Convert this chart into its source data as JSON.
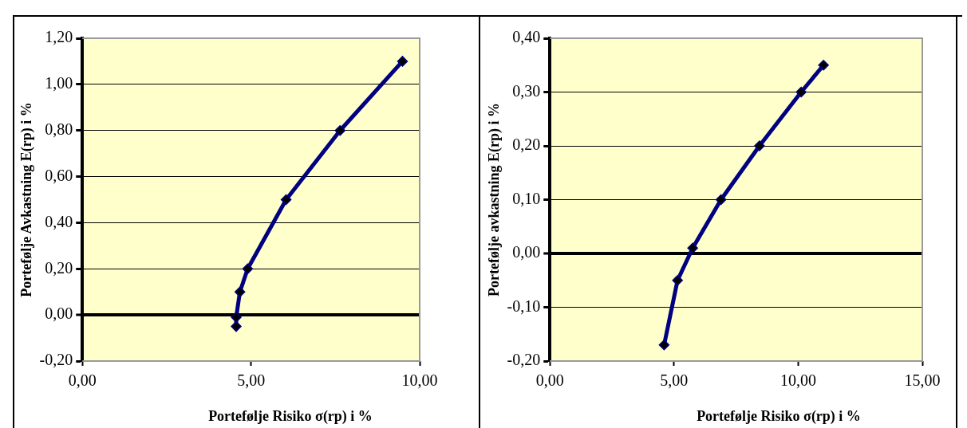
{
  "chart_data": [
    {
      "type": "line",
      "xlabel": "Portefølje Risiko σ(rp) i %",
      "ylabel": "Portefølje Avkastning E(rp) i %",
      "color": "#000080",
      "marker": "diamond",
      "grid": "y",
      "x": [
        9.49,
        7.64,
        6.04,
        4.9,
        4.67,
        4.56,
        4.56
      ],
      "values": [
        1.1,
        0.8,
        0.5,
        0.2,
        0.1,
        -0.01,
        -0.05
      ],
      "xlim": [
        0,
        10
      ],
      "xticks": [
        {
          "value": 0,
          "label": "0,00"
        },
        {
          "value": 5,
          "label": "5,00"
        },
        {
          "value": 10,
          "label": "10,00"
        }
      ],
      "ylim": [
        -0.2,
        1.2
      ],
      "yticks": [
        {
          "value": -0.2,
          "label": "-0,20"
        },
        {
          "value": 0,
          "label": "0,00"
        },
        {
          "value": 0.2,
          "label": "0,20"
        },
        {
          "value": 0.4,
          "label": "0,40"
        },
        {
          "value": 0.6,
          "label": "0,60"
        },
        {
          "value": 0.8,
          "label": "0,80"
        },
        {
          "value": 1.0,
          "label": "1,00"
        },
        {
          "value": 1.2,
          "label": "1,20"
        }
      ]
    },
    {
      "type": "line",
      "xlabel": "Portefølje Risiko σ(rp) i %",
      "ylabel": "Portefølje avkastning E(rp) i %",
      "color": "#000080",
      "marker": "diamond",
      "grid": "y",
      "x": [
        11.02,
        10.12,
        8.44,
        6.89,
        5.75,
        5.14,
        4.6
      ],
      "values": [
        0.35,
        0.3,
        0.2,
        0.1,
        0.01,
        -0.05,
        -0.17
      ],
      "xlim": [
        0,
        15
      ],
      "xticks": [
        {
          "value": 0,
          "label": "0,00"
        },
        {
          "value": 5,
          "label": "5,00"
        },
        {
          "value": 10,
          "label": "10,00"
        },
        {
          "value": 15,
          "label": "15,00"
        }
      ],
      "ylim": [
        -0.2,
        0.4
      ],
      "yticks": [
        {
          "value": -0.2,
          "label": "-0,20"
        },
        {
          "value": -0.1,
          "label": "-0,10"
        },
        {
          "value": 0,
          "label": "0,00"
        },
        {
          "value": 0.1,
          "label": "0,10"
        },
        {
          "value": 0.2,
          "label": "0,20"
        },
        {
          "value": 0.3,
          "label": "0,30"
        },
        {
          "value": 0.4,
          "label": "0,40"
        }
      ]
    }
  ]
}
